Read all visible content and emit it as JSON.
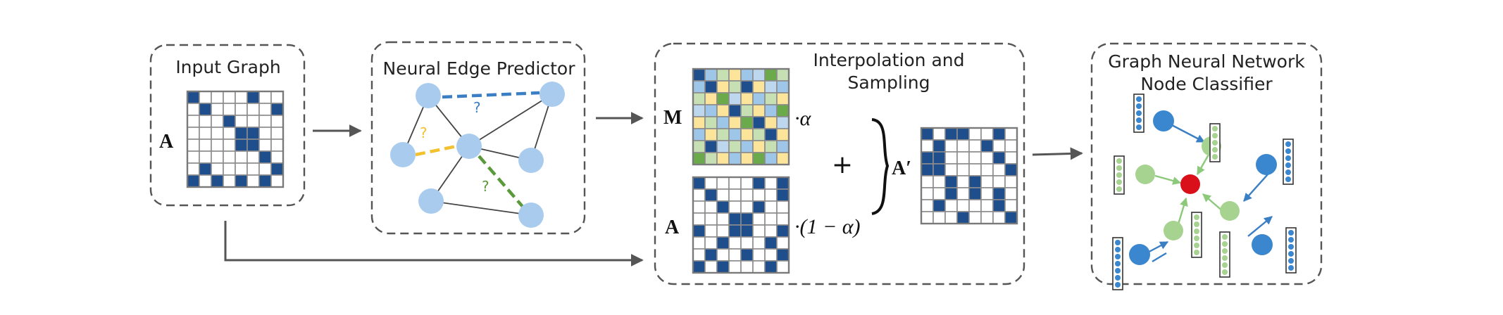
{
  "panels": {
    "input_graph": {
      "title": "Input Graph",
      "matrix_label": "A",
      "matrix": [
        [
          1,
          0,
          0,
          0,
          0,
          1,
          0,
          0
        ],
        [
          0,
          1,
          0,
          0,
          0,
          0,
          0,
          1
        ],
        [
          0,
          0,
          0,
          1,
          0,
          0,
          0,
          0
        ],
        [
          0,
          0,
          0,
          0,
          1,
          1,
          0,
          0
        ],
        [
          0,
          0,
          0,
          0,
          1,
          1,
          0,
          0
        ],
        [
          0,
          0,
          0,
          0,
          0,
          0,
          1,
          0
        ],
        [
          0,
          1,
          0,
          0,
          0,
          0,
          0,
          1
        ],
        [
          1,
          0,
          1,
          0,
          1,
          0,
          1,
          0
        ]
      ]
    },
    "edge_predictor": {
      "title": "Neural Edge Predictor",
      "question_marks": [
        {
          "text": "?",
          "color": "#3a7fc4"
        },
        {
          "text": "?",
          "color": "#f2c12e"
        },
        {
          "text": "?",
          "color": "#5a9a3a"
        }
      ]
    },
    "interpolation": {
      "title_line1": "Interpolation and",
      "title_line2": "Sampling",
      "m_label": "M",
      "m_factor": "·α",
      "a_label": "A",
      "a_factor": "·(1 − α)",
      "plus": "+",
      "result_label": "A′",
      "m_matrix": [
        [
          "#1f4e8c",
          "#9ec6e8",
          "#c6e0b4",
          "#fde49b",
          "#9ec6e8",
          "#bcd7ee",
          "#6aaa4a",
          "#c6e0b4"
        ],
        [
          "#9ec6e8",
          "#1f4e8c",
          "#fde49b",
          "#c6e0b4",
          "#1f4e8c",
          "#fde49b",
          "#bcd7ee",
          "#9ec6e8"
        ],
        [
          "#c6e0b4",
          "#fde49b",
          "#6aaa4a",
          "#bcd7ee",
          "#fde49b",
          "#9ec6e8",
          "#c6e0b4",
          "#fde49b"
        ],
        [
          "#bcd7ee",
          "#9ec6e8",
          "#fde49b",
          "#1f4e8c",
          "#c6e0b4",
          "#fde49b",
          "#9ec6e8",
          "#6aaa4a"
        ],
        [
          "#fde49b",
          "#c6e0b4",
          "#9ec6e8",
          "#fde49b",
          "#6aaa4a",
          "#1f4e8c",
          "#fde49b",
          "#bcd7ee"
        ],
        [
          "#9ec6e8",
          "#fde49b",
          "#c6e0b4",
          "#9ec6e8",
          "#fde49b",
          "#c6e0b4",
          "#1f4e8c",
          "#fde49b"
        ],
        [
          "#c6e0b4",
          "#1f4e8c",
          "#bcd7ee",
          "#c6e0b4",
          "#9ec6e8",
          "#fde49b",
          "#c6e0b4",
          "#9ec6e8"
        ],
        [
          "#6aaa4a",
          "#c6e0b4",
          "#fde49b",
          "#9ec6e8",
          "#fde49b",
          "#6aaa4a",
          "#9ec6e8",
          "#fde49b"
        ]
      ],
      "a_matrix": [
        [
          1,
          0,
          0,
          0,
          0,
          1,
          0,
          1
        ],
        [
          0,
          1,
          0,
          0,
          0,
          0,
          0,
          1
        ],
        [
          0,
          0,
          1,
          0,
          0,
          1,
          0,
          0
        ],
        [
          0,
          0,
          0,
          1,
          1,
          0,
          0,
          0
        ],
        [
          1,
          0,
          0,
          1,
          1,
          0,
          0,
          1
        ],
        [
          0,
          0,
          1,
          0,
          0,
          0,
          1,
          0
        ],
        [
          0,
          1,
          0,
          0,
          1,
          0,
          0,
          1
        ],
        [
          1,
          0,
          1,
          0,
          0,
          0,
          1,
          0
        ]
      ],
      "result_matrix": [
        [
          1,
          0,
          1,
          1,
          0,
          0,
          1,
          0
        ],
        [
          0,
          1,
          0,
          0,
          0,
          1,
          0,
          0
        ],
        [
          1,
          1,
          0,
          0,
          0,
          0,
          1,
          0
        ],
        [
          1,
          1,
          0,
          0,
          0,
          0,
          0,
          1
        ],
        [
          0,
          0,
          1,
          0,
          1,
          0,
          0,
          0
        ],
        [
          0,
          0,
          1,
          0,
          1,
          0,
          1,
          0
        ],
        [
          0,
          1,
          0,
          0,
          0,
          0,
          1,
          0
        ],
        [
          0,
          0,
          0,
          1,
          0,
          0,
          0,
          1
        ]
      ]
    },
    "gnn": {
      "title_line1": "Graph Neural Network",
      "title_line2": "Node Classifier"
    }
  },
  "colors": {
    "matrix_filled": "#1f4e8c",
    "matrix_empty": "#ffffff",
    "matrix_grid": "#8c8c8c",
    "node_light_blue": "#a9ccee",
    "node_blue": "#3a87cf",
    "node_green": "#a6d38f",
    "node_red": "#d9101a",
    "edge_blue_arrow": "#3a7fc4",
    "edge_green_arrow": "#8cc97a",
    "predicted_blue": "#3a7fc4",
    "predicted_yellow": "#f2c12e",
    "predicted_green": "#5a9a3a"
  }
}
